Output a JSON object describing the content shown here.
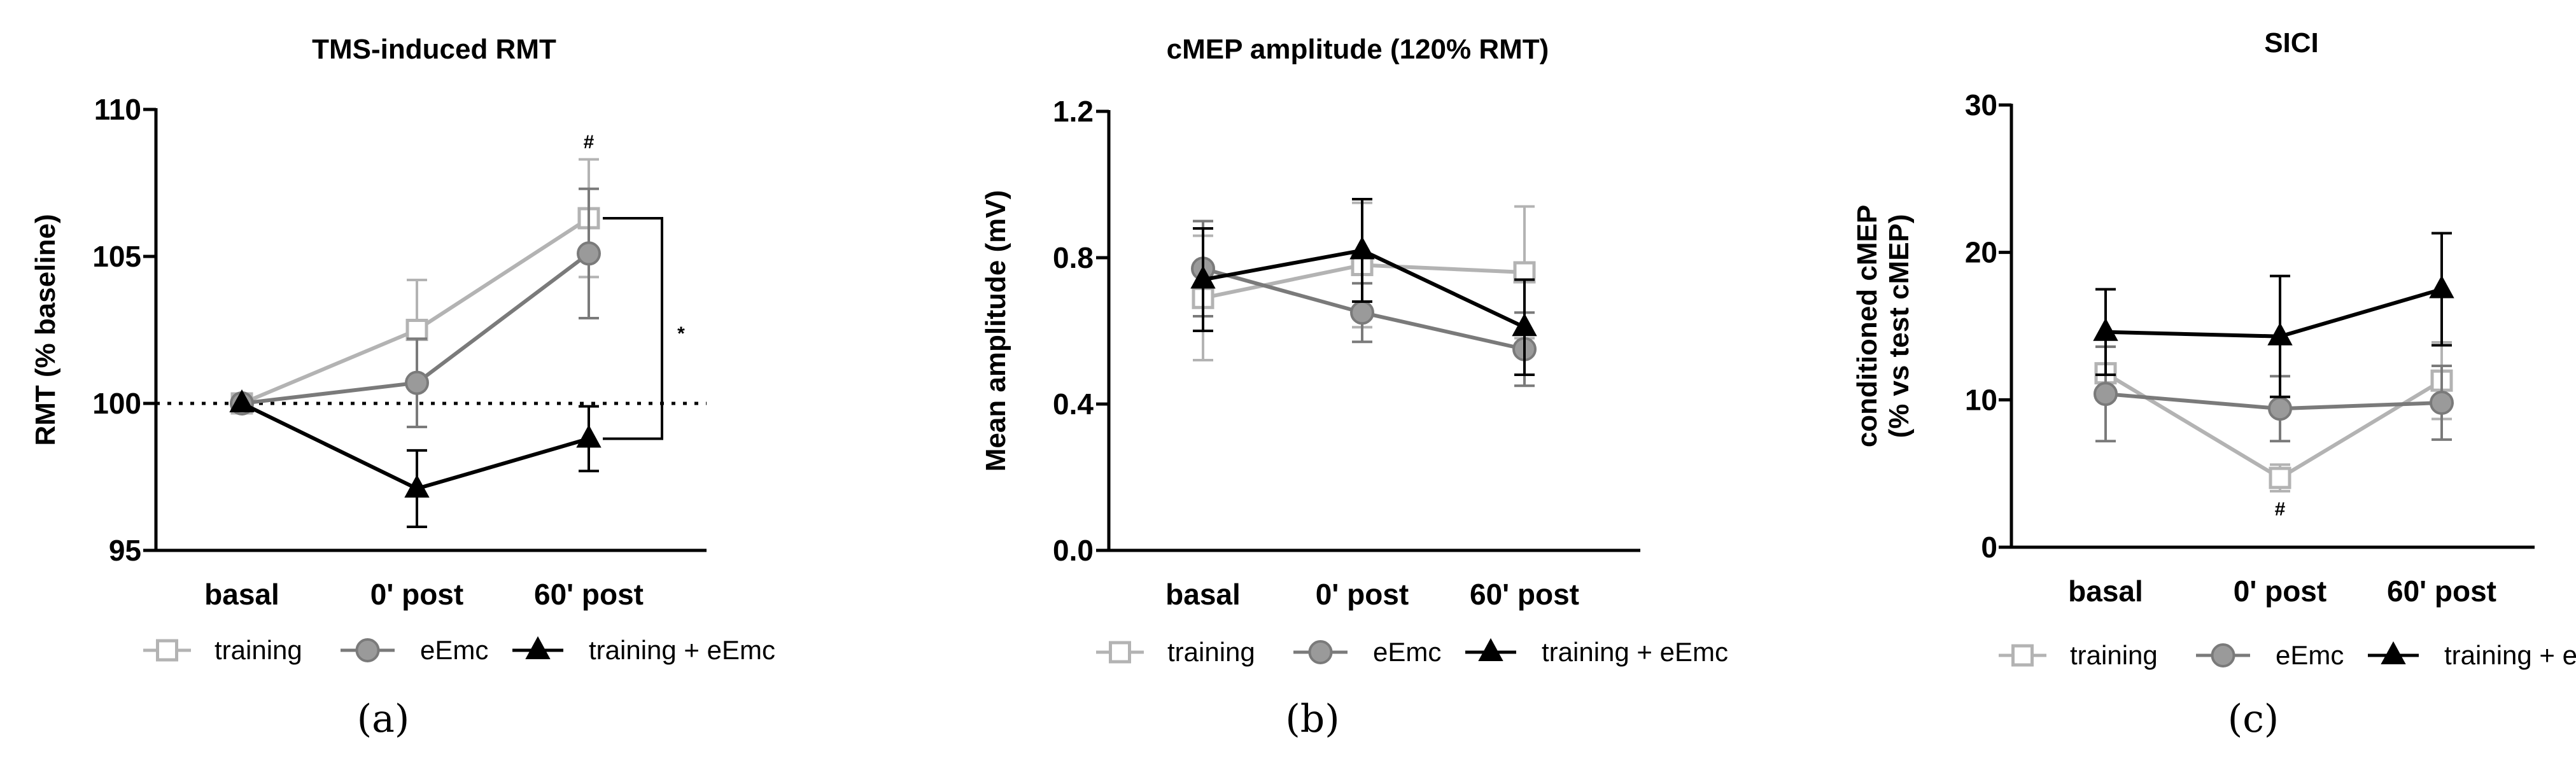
{
  "figure": {
    "panel_labels": [
      "(a)",
      "(b)",
      "(c)"
    ],
    "legend_entries": [
      "training",
      "eEmc",
      "training + eEmc"
    ]
  },
  "colors": {
    "training": "#b3b3b3",
    "eEmc": "#7a7a7a",
    "eEmc_fill": "#9a9a9a",
    "combined": "#000000",
    "axis": "#000000"
  },
  "chart_data": [
    {
      "type": "line",
      "title": "TMS-induced RMT",
      "ylabel": "RMT (% baseline)",
      "xlabel": "",
      "categories": [
        "basal",
        "0' post",
        "60' post"
      ],
      "ylim": [
        95,
        110
      ],
      "yticks": [
        95,
        100,
        105,
        110
      ],
      "ytick_labels": [
        "95",
        "100",
        "105",
        "110"
      ],
      "reference_line": 100,
      "series": [
        {
          "name": "training",
          "marker": "square",
          "values": [
            100,
            102.5,
            106.3
          ],
          "errors": [
            0,
            1.7,
            2.0
          ]
        },
        {
          "name": "eEmc",
          "marker": "circle",
          "values": [
            100,
            100.7,
            105.1
          ],
          "errors": [
            0,
            1.5,
            2.2
          ]
        },
        {
          "name": "training + eEmc",
          "marker": "triangle",
          "values": [
            100,
            97.1,
            98.8
          ],
          "errors": [
            0,
            1.3,
            1.1
          ]
        }
      ],
      "annotations": [
        {
          "text": "#",
          "category": "60' post",
          "y": 108.9
        },
        {
          "text": "*",
          "bracket": [
            "training",
            "training + eEmc"
          ],
          "category": "60' post"
        }
      ]
    },
    {
      "type": "line",
      "title": "cMEP amplitude (120% RMT)",
      "ylabel": "Mean amplitude (mV)",
      "xlabel": "",
      "categories": [
        "basal",
        "0' post",
        "60' post"
      ],
      "ylim": [
        0.0,
        1.2
      ],
      "yticks": [
        0.0,
        0.4,
        0.8,
        1.2
      ],
      "ytick_labels": [
        "0.0",
        "0.4",
        "0.8",
        "1.2"
      ],
      "series": [
        {
          "name": "training",
          "marker": "square",
          "values": [
            0.69,
            0.78,
            0.76
          ],
          "errors": [
            0.17,
            0.17,
            0.18
          ]
        },
        {
          "name": "eEmc",
          "marker": "circle",
          "values": [
            0.77,
            0.65,
            0.55
          ],
          "errors": [
            0.13,
            0.08,
            0.1
          ]
        },
        {
          "name": "training + eEmc",
          "marker": "triangle",
          "values": [
            0.74,
            0.82,
            0.61
          ],
          "errors": [
            0.14,
            0.14,
            0.13
          ]
        }
      ],
      "annotations": []
    },
    {
      "type": "line",
      "title": "SICI",
      "ylabel": "conditioned cMEP (% vs test cMEP)",
      "ylabel_lines": [
        "conditioned cMEP",
        "(% vs test cMEP)"
      ],
      "xlabel": "",
      "categories": [
        "basal",
        "0' post",
        "60' post"
      ],
      "ylim": [
        0,
        30
      ],
      "yticks": [
        0,
        10,
        20,
        30
      ],
      "ytick_labels": [
        "0",
        "10",
        "20",
        "30"
      ],
      "series": [
        {
          "name": "training",
          "marker": "square",
          "values": [
            11.8,
            4.7,
            11.3
          ],
          "errors": [
            1.8,
            0.9,
            2.6
          ]
        },
        {
          "name": "eEmc",
          "marker": "circle",
          "values": [
            10.4,
            9.4,
            9.8
          ],
          "errors": [
            3.2,
            2.2,
            2.5
          ]
        },
        {
          "name": "training + eEmc",
          "marker": "triangle",
          "values": [
            14.6,
            14.3,
            17.5
          ],
          "errors": [
            2.9,
            4.1,
            3.8
          ]
        }
      ],
      "annotations": [
        {
          "text": "#",
          "category": "0' post",
          "y": 2.6
        }
      ]
    }
  ]
}
